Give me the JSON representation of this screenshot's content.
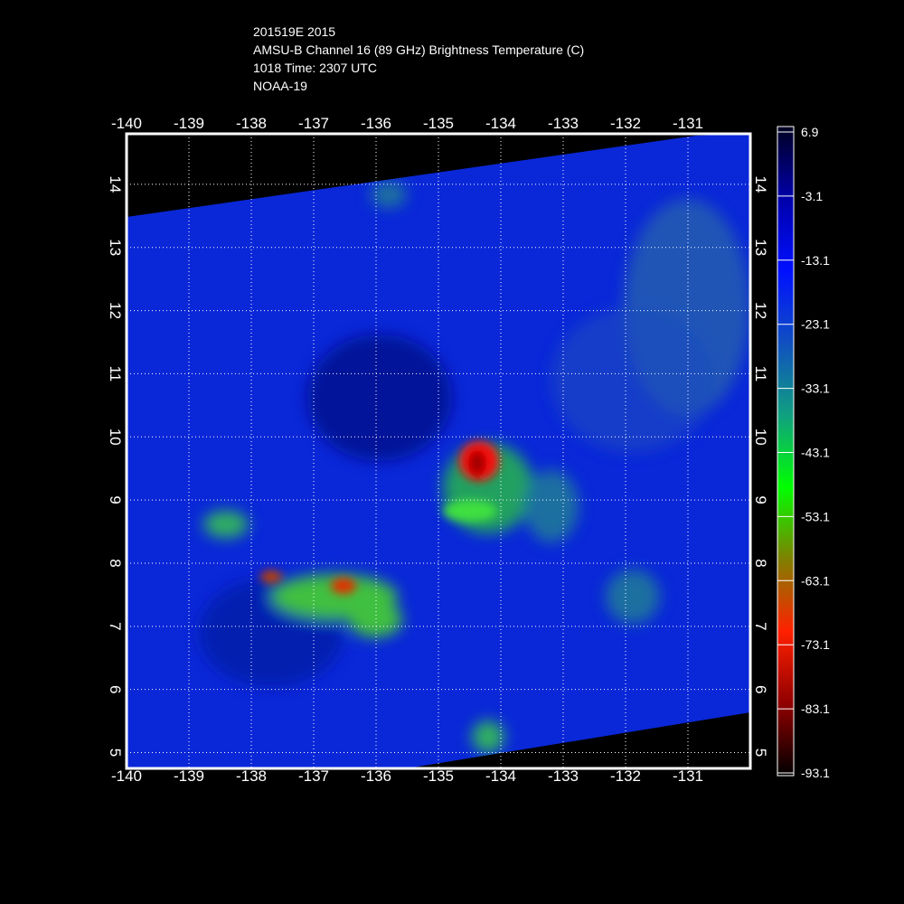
{
  "header": {
    "lines": [
      "201519E 2015",
      "AMSU-B Channel 16 (89 GHz) Brightness Temperature (C)",
      "1018 Time: 2307 UTC",
      "NOAA-19"
    ]
  },
  "map": {
    "xlim": [
      -140,
      -130
    ],
    "ylim": [
      4.75,
      14.8
    ],
    "xticks": [
      -140,
      -139,
      -138,
      -137,
      -136,
      -135,
      -134,
      -133,
      -132,
      -131
    ],
    "yticks": [
      5,
      6,
      7,
      8,
      9,
      10,
      11,
      12,
      13,
      14
    ],
    "grid": true
  },
  "colorbar": {
    "lim": [
      -93.1,
      6.9
    ],
    "ticks": [
      6.9,
      -3.1,
      -13.1,
      -23.1,
      -33.1,
      -43.1,
      -53.1,
      -63.1,
      -73.1,
      -83.1,
      -93.1
    ],
    "colors": [
      "#000022",
      "#0000aa",
      "#0010ff",
      "#1050c0",
      "#10a080",
      "#00ff00",
      "#808000",
      "#ff2000",
      "#900000",
      "#000000"
    ]
  }
}
